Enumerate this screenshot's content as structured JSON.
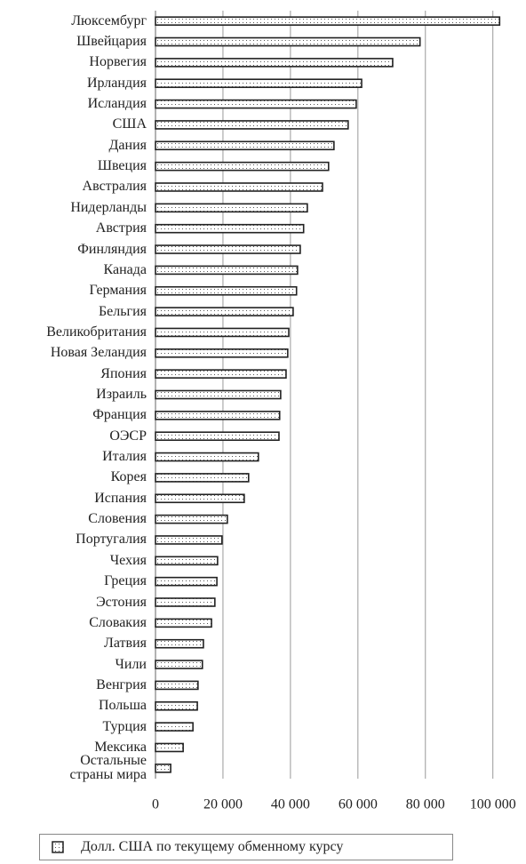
{
  "chart_data": {
    "type": "hbar",
    "categories": [
      "Люксембург",
      "Швейцария",
      "Норвегия",
      "Ирландия",
      "Исландия",
      "США",
      "Дания",
      "Швеция",
      "Австралия",
      "Нидерланды",
      "Австрия",
      "Финляндия",
      "Канада",
      "Германия",
      "Бельгия",
      "Великобритания",
      "Новая Зеландия",
      "Япония",
      "Израиль",
      "Франция",
      "ОЭСР",
      "Италия",
      "Корея",
      "Испания",
      "Словения",
      "Португалия",
      "Чехия",
      "Греция",
      "Эстония",
      "Словакия",
      "Латвия",
      "Чили",
      "Венгрия",
      "Польша",
      "Турция",
      "Мексика",
      "Остальные\nстраны мира"
    ],
    "series": [
      {
        "name": "Долл. США по текущему обменному курсу",
        "color": "#222222",
        "values": [
          102000,
          78400,
          70300,
          61100,
          59500,
          57100,
          52900,
          51300,
          49500,
          45000,
          43900,
          42900,
          42100,
          41800,
          40800,
          39500,
          39200,
          38700,
          37100,
          36800,
          36600,
          30500,
          27600,
          26300,
          21300,
          19700,
          18400,
          18200,
          17600,
          16600,
          14200,
          13900,
          12600,
          12400,
          11100,
          8200,
          4500
        ]
      }
    ],
    "xlim": [
      0,
      103500
    ],
    "xticks": [
      0,
      {
        "value": 20000,
        "label": "20 000"
      },
      {
        "value": 40000,
        "label": "40 000"
      },
      {
        "value": 60000,
        "label": "60 000"
      },
      {
        "value": 80000,
        "label": "80 000"
      },
      {
        "value": 100000,
        "label": "100 000"
      }
    ],
    "grid": true
  }
}
